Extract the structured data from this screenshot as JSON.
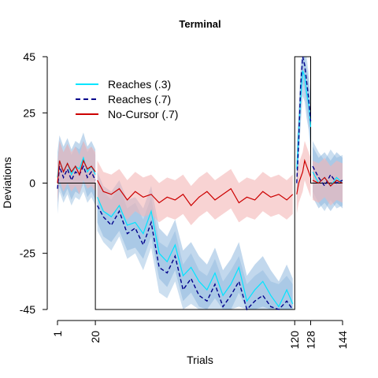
{
  "chart_data": {
    "type": "line",
    "title": "Terminal",
    "xlabel": "Trials",
    "ylabel": "Deviations",
    "xlim": [
      1,
      144
    ],
    "ylim": [
      -45,
      45
    ],
    "x_ticks": [
      1,
      20,
      120,
      128,
      144
    ],
    "y_ticks": [
      45,
      25,
      0,
      -25,
      -45
    ],
    "legend": {
      "position": "top-left",
      "entries": [
        {
          "label": "Reaches (.3)",
          "color": "#00e5ff",
          "style": "solid"
        },
        {
          "label": "Reaches (.7)",
          "color": "#00008b",
          "style": "dashed"
        },
        {
          "label": "No-Cursor (.7)",
          "color": "#cc0000",
          "style": "solid"
        }
      ]
    },
    "perturbation_schedule": {
      "color": "#000000",
      "points": [
        [
          1,
          0
        ],
        [
          20,
          0
        ],
        [
          20,
          -45
        ],
        [
          120,
          -45
        ],
        [
          120,
          45
        ],
        [
          128,
          45
        ],
        [
          128,
          0
        ],
        [
          144,
          0
        ]
      ]
    },
    "series": [
      {
        "name": "Reaches (.3)",
        "color": "#00e5ff",
        "band_color": "#8fb8de",
        "segments": [
          {
            "x": [
              1,
              2,
              4,
              6,
              8,
              10,
              12,
              14,
              16,
              18,
              20
            ],
            "y": [
              2,
              8,
              4,
              7,
              3,
              6,
              5,
              9,
              4,
              6,
              3
            ]
          },
          {
            "x": [
              21,
              24,
              28,
              32,
              36,
              40,
              44,
              48,
              52,
              56,
              60,
              64,
              68,
              72,
              76,
              80,
              84,
              88,
              92,
              96,
              100,
              104,
              108,
              112,
              116,
              119
            ],
            "y": [
              -5,
              -10,
              -12,
              -8,
              -15,
              -14,
              -18,
              -10,
              -25,
              -28,
              -22,
              -33,
              -30,
              -35,
              -38,
              -32,
              -40,
              -36,
              -30,
              -42,
              -38,
              -35,
              -40,
              -44,
              -38,
              -43
            ]
          },
          {
            "x": [
              121,
              122,
              123,
              124,
              125,
              126,
              127,
              128
            ],
            "y": [
              5,
              18,
              30,
              40,
              38,
              32,
              28,
              20
            ]
          },
          {
            "x": [
              129,
              132,
              135,
              138,
              141,
              144
            ],
            "y": [
              4,
              0,
              2,
              -1,
              2,
              0
            ]
          }
        ]
      },
      {
        "name": "Reaches (.7)",
        "color": "#00008b",
        "band_color": "#8fb8de",
        "segments": [
          {
            "x": [
              1,
              2,
              4,
              6,
              8,
              10,
              12,
              14,
              16,
              18,
              20
            ],
            "y": [
              -2,
              6,
              2,
              5,
              1,
              4,
              3,
              6,
              2,
              4,
              1
            ]
          },
          {
            "x": [
              21,
              24,
              28,
              32,
              36,
              40,
              44,
              48,
              52,
              56,
              60,
              64,
              68,
              72,
              76,
              80,
              84,
              88,
              92,
              96,
              100,
              104,
              108,
              112,
              116,
              119
            ],
            "y": [
              -8,
              -12,
              -15,
              -10,
              -18,
              -16,
              -22,
              -14,
              -30,
              -32,
              -26,
              -38,
              -34,
              -40,
              -42,
              -36,
              -44,
              -40,
              -35,
              -45,
              -42,
              -40,
              -44,
              -45,
              -42,
              -45
            ]
          },
          {
            "x": [
              121,
              122,
              123,
              124,
              125,
              126,
              127,
              128
            ],
            "y": [
              0,
              15,
              35,
              45,
              42,
              36,
              30,
              22
            ]
          },
          {
            "x": [
              129,
              132,
              135,
              138,
              141,
              144
            ],
            "y": [
              6,
              2,
              -1,
              3,
              0,
              1
            ]
          }
        ]
      },
      {
        "name": "No-Cursor (.7)",
        "color": "#cc0000",
        "band_color": "#f4b6b6",
        "segments": [
          {
            "x": [
              1,
              2,
              4,
              6,
              8,
              10,
              12,
              14,
              16,
              18,
              20
            ],
            "y": [
              0,
              8,
              4,
              7,
              4,
              6,
              3,
              8,
              5,
              6,
              4
            ]
          },
          {
            "x": [
              21,
              24,
              28,
              32,
              36,
              40,
              44,
              48,
              52,
              56,
              60,
              64,
              68,
              72,
              76,
              80,
              84,
              88,
              92,
              96,
              100,
              104,
              108,
              112,
              116,
              119
            ],
            "y": [
              1,
              -3,
              -4,
              -2,
              -6,
              -3,
              -5,
              -4,
              -7,
              -5,
              -6,
              -4,
              -8,
              -5,
              -3,
              -6,
              -4,
              -2,
              -7,
              -5,
              -6,
              -3,
              -5,
              -4,
              -6,
              -4
            ]
          },
          {
            "x": [
              121,
              122,
              123,
              124,
              125,
              126,
              127,
              128
            ],
            "y": [
              -4,
              0,
              2,
              4,
              8,
              6,
              4,
              2
            ]
          },
          {
            "x": [
              129,
              132,
              135,
              138,
              141,
              144
            ],
            "y": [
              1,
              0,
              2,
              -1,
              1,
              0
            ]
          }
        ]
      }
    ]
  }
}
